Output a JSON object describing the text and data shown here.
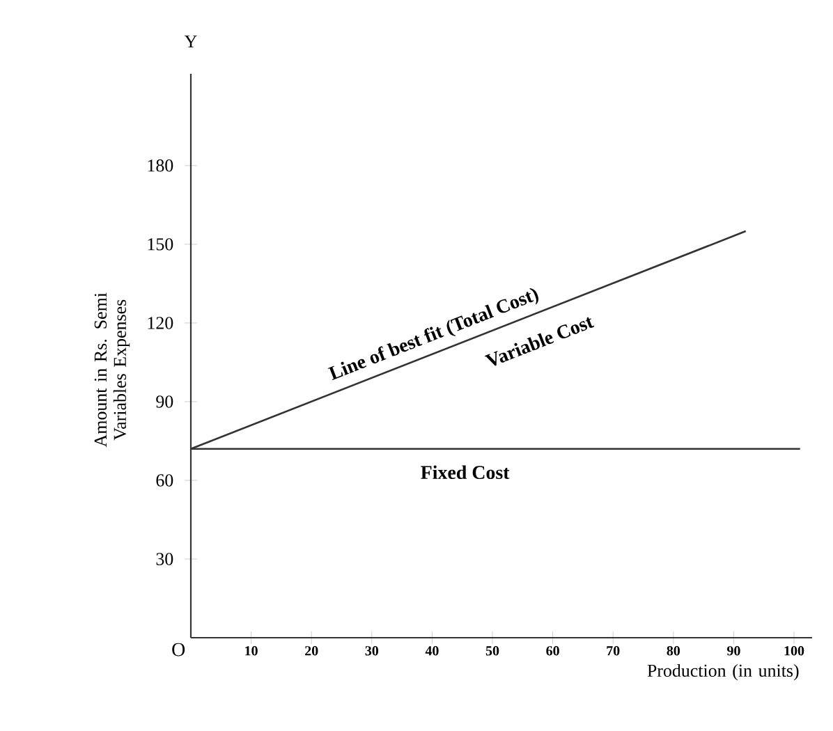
{
  "chart_data": {
    "type": "line",
    "xlabel": "Production (in units)",
    "ylabel": "Amount in Rs. Semi Variables Expenses",
    "series": [
      {
        "name": "Line of best fit (Total Cost)",
        "color": "#333333",
        "x": [
          0,
          92
        ],
        "values": [
          72,
          155
        ]
      },
      {
        "name": "Fixed Cost",
        "color": "#333333",
        "x": [
          0,
          101
        ],
        "values": [
          72,
          72
        ]
      }
    ],
    "xlim": [
      0,
      103
    ],
    "ylim": [
      0,
      215
    ],
    "xticks": [
      10,
      20,
      30,
      40,
      50,
      60,
      70,
      80,
      90,
      100
    ],
    "yticks": [
      30,
      60,
      90,
      120,
      150,
      180
    ],
    "annotations": [
      "Variable Cost",
      "O",
      "Y"
    ],
    "grid": false,
    "marker": "none",
    "line_style": "solid"
  }
}
